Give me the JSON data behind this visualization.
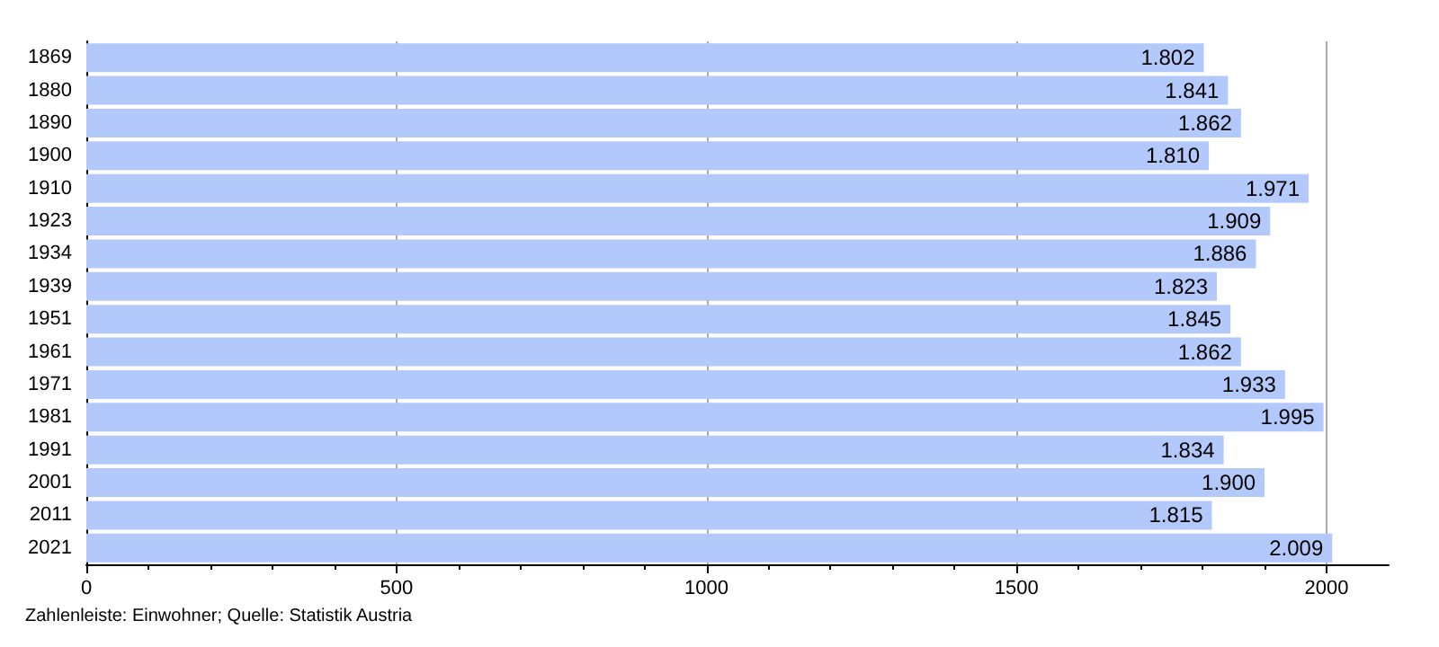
{
  "chart_data": {
    "type": "bar",
    "orientation": "horizontal",
    "categories": [
      "1869",
      "1880",
      "1890",
      "1900",
      "1910",
      "1923",
      "1934",
      "1939",
      "1951",
      "1961",
      "1971",
      "1981",
      "1991",
      "2001",
      "2011",
      "2021"
    ],
    "values": [
      1802,
      1841,
      1862,
      1810,
      1971,
      1909,
      1886,
      1823,
      1845,
      1862,
      1933,
      1995,
      1834,
      1900,
      1815,
      2009
    ],
    "value_labels": [
      "1.802",
      "1.841",
      "1.862",
      "1.810",
      "1.971",
      "1.909",
      "1.886",
      "1.823",
      "1.845",
      "1.862",
      "1.933",
      "1.995",
      "1.834",
      "1.900",
      "1.815",
      "2.009"
    ],
    "color": "#b3c8fb",
    "xlim": [
      0,
      2100
    ],
    "xticks": [
      0,
      500,
      1000,
      1500,
      2000
    ],
    "grid": "x",
    "annotations": [
      "Zahlenleiste: Einwohner; Quelle: Statistik Austria"
    ]
  }
}
